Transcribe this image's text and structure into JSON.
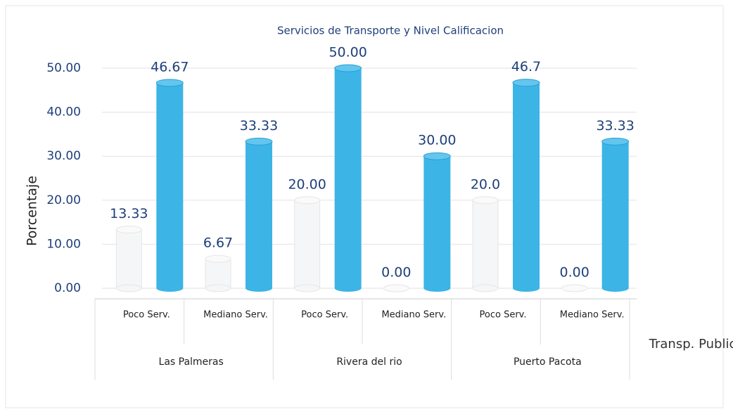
{
  "chart_data": {
    "type": "bar",
    "title": "Servicios de Transporte  y Nivel Calificacion",
    "ylabel": "Porcentaje",
    "categories": [
      "Poco Serv.",
      "Mediano Serv.",
      "Poco Serv.",
      "Mediano Serv.",
      "Poco Serv.",
      "Mediano Serv."
    ],
    "groups": [
      "Las Palmeras",
      "Rivera del rio",
      "Puerto Pacota"
    ],
    "series": [
      {
        "color": "#f4f6f8",
        "values": [
          13.33,
          6.67,
          20,
          0,
          20,
          0
        ],
        "value_labels": [
          "13.33",
          "6.67",
          "20.00",
          "0.00",
          "20.0",
          "0.00"
        ]
      },
      {
        "name": "Transp. Publico",
        "color": "#3cb4e6",
        "values": [
          46.67,
          33.33,
          50,
          30,
          46.7,
          33.33
        ],
        "value_labels": [
          "46.67",
          "33.33",
          "50.00",
          "30.00",
          "46.7",
          "33.33"
        ]
      }
    ],
    "ylim": [
      0,
      50
    ],
    "yticks": [
      {
        "value": 0,
        "label": "0.00"
      },
      {
        "value": 10,
        "label": "10.00"
      },
      {
        "value": 20,
        "label": "20.00"
      },
      {
        "value": 30,
        "label": "30.00"
      },
      {
        "value": 40,
        "label": "40.00"
      },
      {
        "value": 50,
        "label": "50.00"
      }
    ],
    "grid": true
  }
}
